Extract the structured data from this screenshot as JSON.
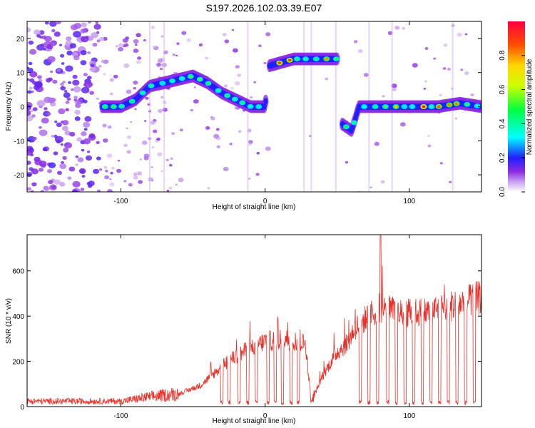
{
  "title": "S197.2026.102.03.39.E07",
  "chart_data": [
    {
      "type": "heatmap",
      "name": "spectrogram",
      "xlabel": "Height of straight line (km)",
      "ylabel": "Frequency (Hz)",
      "xlim": [
        -165,
        150
      ],
      "ylim": [
        -25,
        25
      ],
      "xticks": [
        "-100",
        "0",
        "100"
      ],
      "xtick_values": [
        -100,
        0,
        100
      ],
      "yticks": [
        "-20",
        "-10",
        "0",
        "10",
        "20"
      ],
      "ytick_values": [
        -20,
        -10,
        0,
        10,
        20
      ],
      "colorbar": {
        "label": "Normalized spectral amplitude",
        "range": [
          0,
          1
        ],
        "ticks": [
          "0.0",
          "0.2",
          "0.4",
          "0.6",
          "0.8"
        ],
        "tick_values": [
          0.0,
          0.2,
          0.4,
          0.6,
          0.8
        ]
      },
      "ridge": [
        {
          "x": -113,
          "f": 0
        },
        {
          "x": -100,
          "f": 0
        },
        {
          "x": -90,
          "f": 2
        },
        {
          "x": -80,
          "f": 6
        },
        {
          "x": -70,
          "f": 7
        },
        {
          "x": -60,
          "f": 8
        },
        {
          "x": -50,
          "f": 9
        },
        {
          "x": -40,
          "f": 7
        },
        {
          "x": -30,
          "f": 4
        },
        {
          "x": -20,
          "f": 2
        },
        {
          "x": -10,
          "f": 0
        },
        {
          "x": 0,
          "f": 0
        },
        {
          "x": 3,
          "f": 12
        },
        {
          "x": 20,
          "f": 14
        },
        {
          "x": 35,
          "f": 14
        },
        {
          "x": 50,
          "f": 14
        },
        {
          "x": 53,
          "f": -5
        },
        {
          "x": 60,
          "f": -7
        },
        {
          "x": 65,
          "f": 0
        },
        {
          "x": 80,
          "f": 0
        },
        {
          "x": 100,
          "f": 0
        },
        {
          "x": 120,
          "f": 0
        },
        {
          "x": 135,
          "f": 1
        },
        {
          "x": 150,
          "f": 0
        }
      ]
    },
    {
      "type": "line",
      "name": "snr",
      "xlabel": "Height of straight line (km)",
      "ylabel": "SNR (10 * v/v)",
      "xlim": [
        -165,
        150
      ],
      "ylim": [
        0,
        760
      ],
      "xticks": [
        "-100",
        "0",
        "100"
      ],
      "xtick_values": [
        -100,
        0,
        100
      ],
      "yticks": [
        "0",
        "200",
        "400",
        "600"
      ],
      "ytick_values": [
        0,
        200,
        400,
        600
      ],
      "color": "#e8302a",
      "envelope": [
        {
          "x": -165,
          "y": 25
        },
        {
          "x": -100,
          "y": 25
        },
        {
          "x": -80,
          "y": 45
        },
        {
          "x": -60,
          "y": 60
        },
        {
          "x": -45,
          "y": 100
        },
        {
          "x": -35,
          "y": 160
        },
        {
          "x": -25,
          "y": 220
        },
        {
          "x": -10,
          "y": 280
        },
        {
          "x": 0,
          "y": 310
        },
        {
          "x": 15,
          "y": 320
        },
        {
          "x": 28,
          "y": 300
        },
        {
          "x": 32,
          "y": 20
        },
        {
          "x": 40,
          "y": 150
        },
        {
          "x": 50,
          "y": 260
        },
        {
          "x": 57,
          "y": 300
        },
        {
          "x": 62,
          "y": 370
        },
        {
          "x": 70,
          "y": 420
        },
        {
          "x": 80,
          "y": 470
        },
        {
          "x": 95,
          "y": 440
        },
        {
          "x": 110,
          "y": 450
        },
        {
          "x": 125,
          "y": 470
        },
        {
          "x": 140,
          "y": 500
        },
        {
          "x": 150,
          "y": 520
        }
      ],
      "dropouts": [
        -30,
        -25,
        -18,
        -12,
        -6,
        2,
        7,
        12,
        18,
        23,
        66,
        72,
        78,
        85,
        91,
        97,
        103,
        109,
        115,
        121,
        127,
        133,
        139,
        145
      ],
      "peak": {
        "x": 80,
        "y": 760
      }
    }
  ],
  "colors": {
    "snr_line": "#e8302a",
    "axis": "#000000",
    "background": "#ffffff"
  }
}
